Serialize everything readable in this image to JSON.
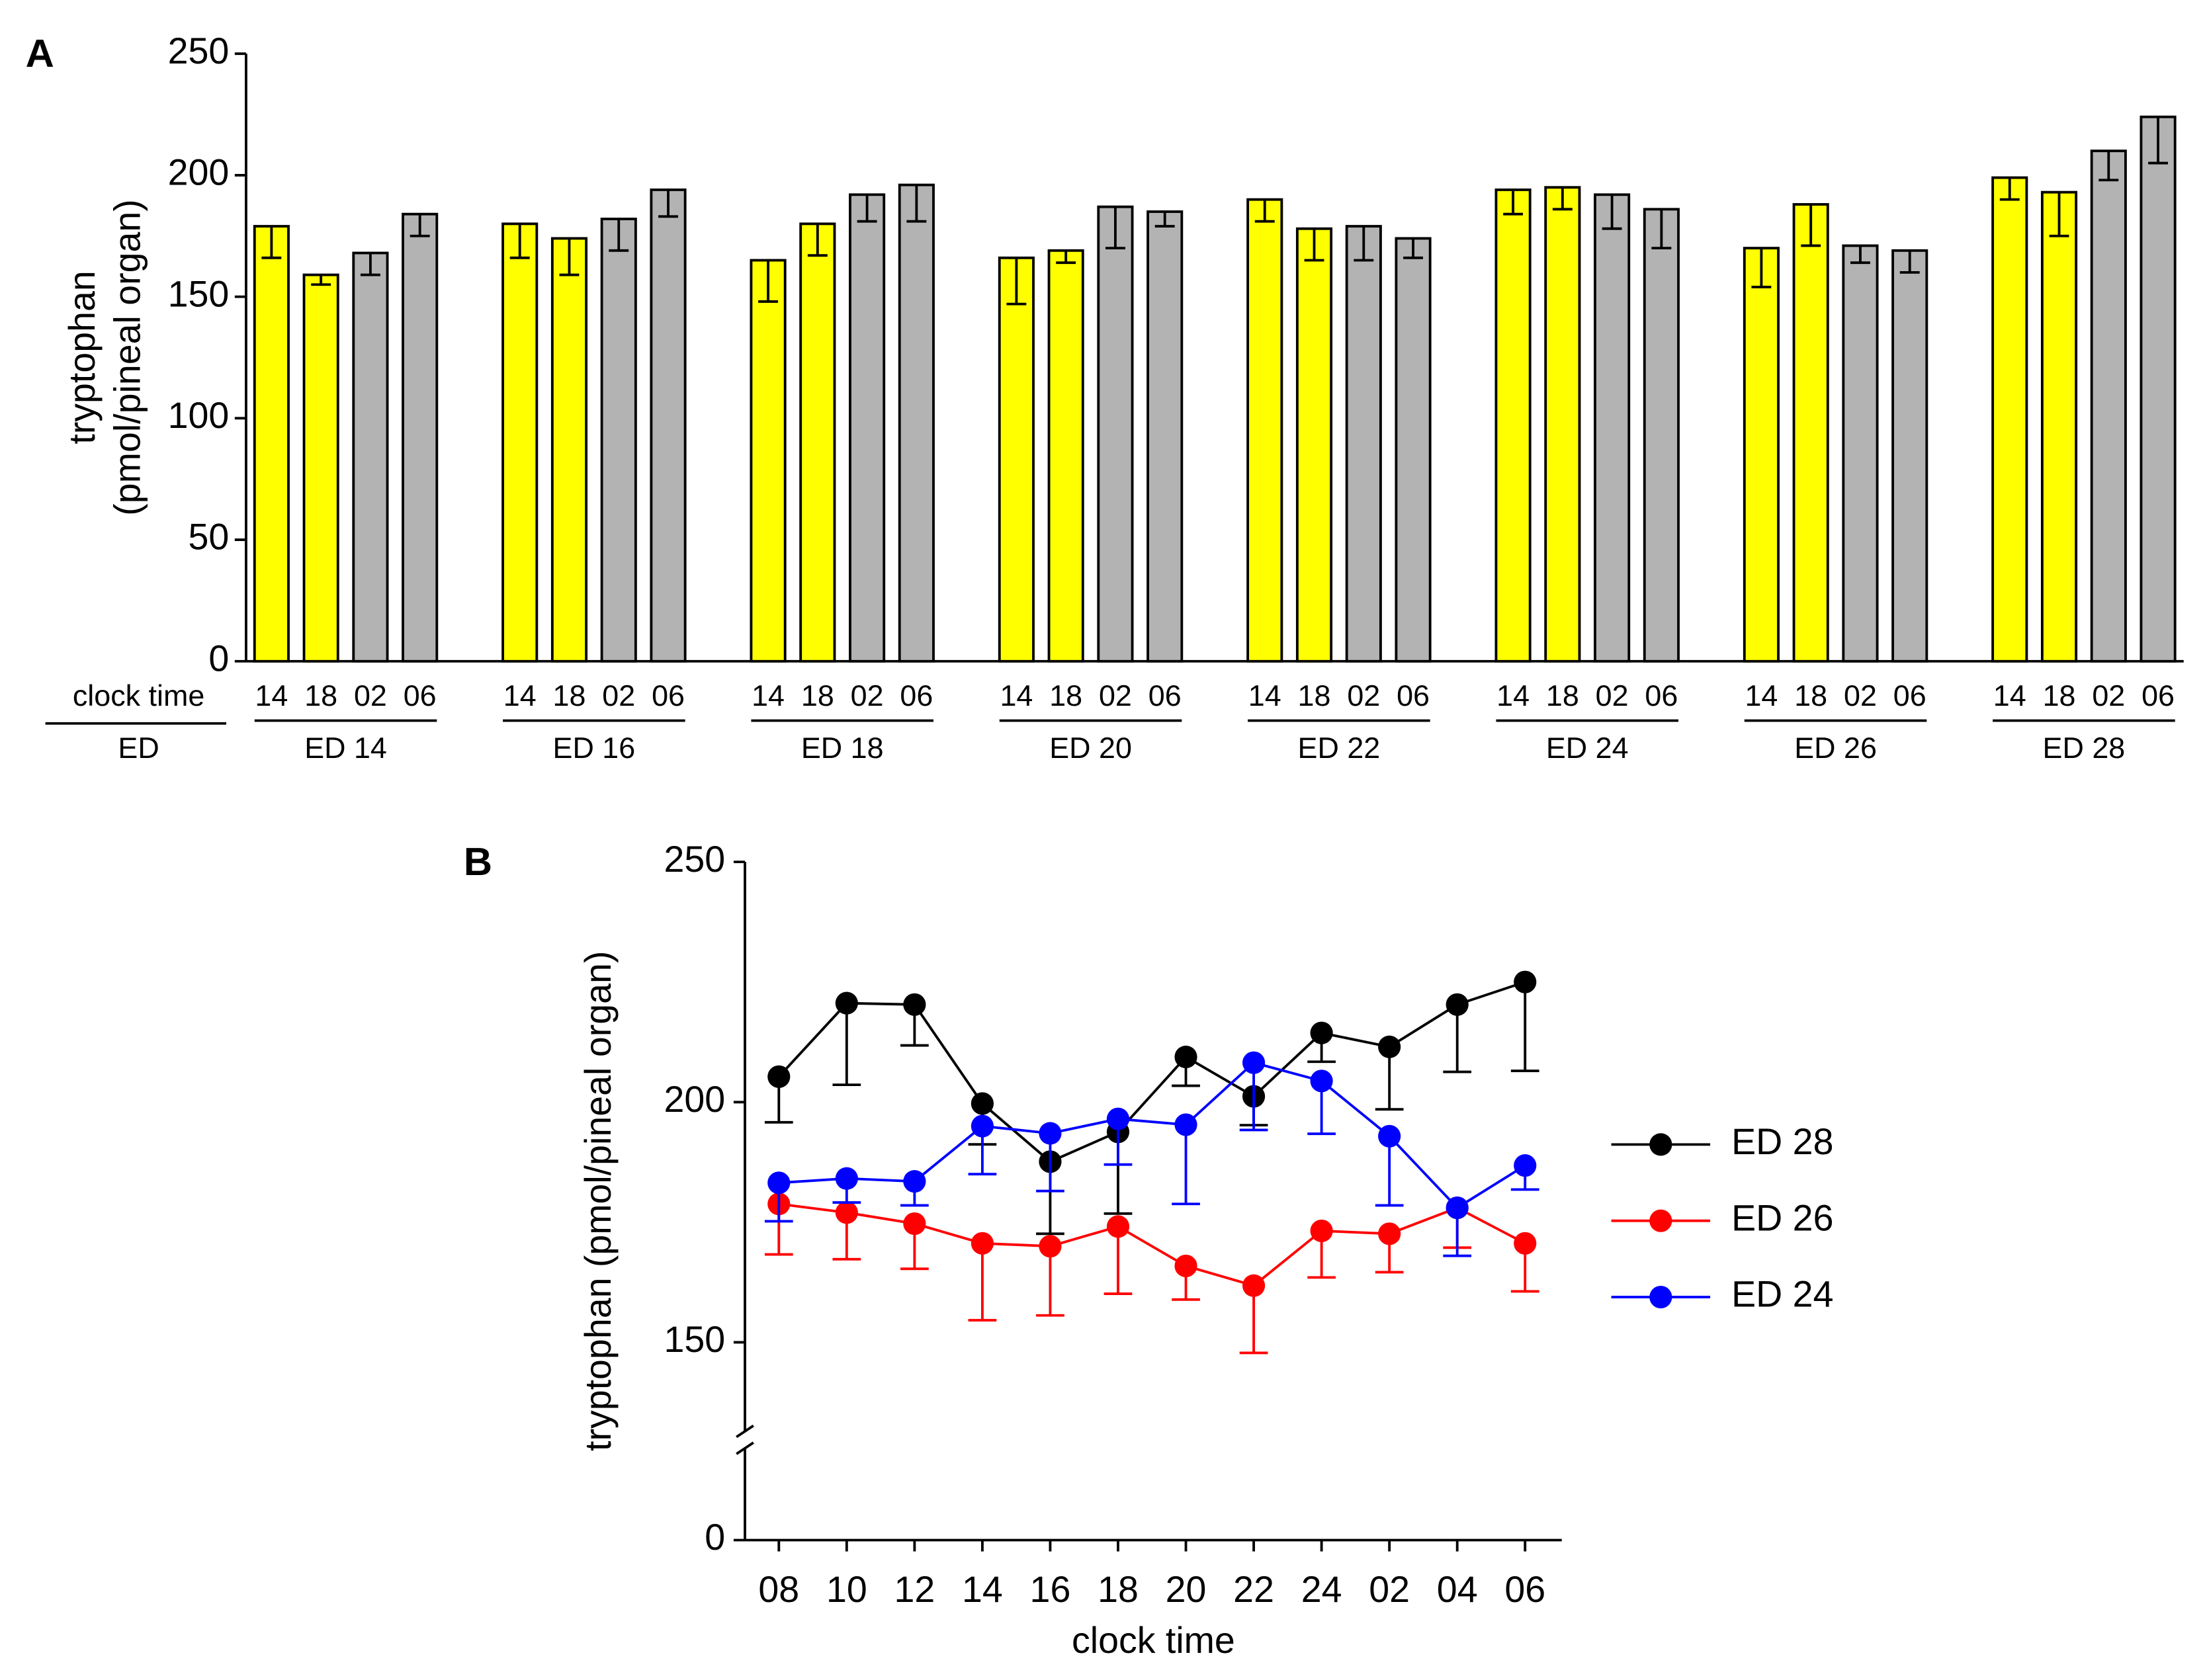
{
  "chart_data": [
    {
      "type": "bar",
      "label": "A",
      "ylabel": [
        "tryptophan",
        "(pmol/pineal organ)"
      ],
      "ylim": [
        0,
        250
      ],
      "yticks": [
        0,
        50,
        100,
        150,
        200,
        250
      ],
      "row_labels": [
        "clock time",
        "ED"
      ],
      "categories": [
        "ED 14",
        "ED 16",
        "ED 18",
        "ED 20",
        "ED 22",
        "ED 24",
        "ED 26",
        "ED 28"
      ],
      "series": [
        {
          "name": "14",
          "color": "#ffff00",
          "values": [
            179,
            180,
            165,
            166,
            190,
            194,
            170,
            199
          ],
          "errors": [
            13,
            14,
            17,
            19,
            9,
            10,
            16,
            9
          ]
        },
        {
          "name": "18",
          "color": "#ffff00",
          "values": [
            159,
            174,
            180,
            169,
            178,
            195,
            188,
            193
          ],
          "errors": [
            4,
            15,
            13,
            5,
            13,
            9,
            17,
            18
          ]
        },
        {
          "name": "02",
          "color": "#b3b3b3",
          "values": [
            168,
            182,
            192,
            187,
            179,
            192,
            171,
            210
          ],
          "errors": [
            9,
            13,
            11,
            17,
            14,
            14,
            7,
            12
          ]
        },
        {
          "name": "06",
          "color": "#b3b3b3",
          "values": [
            184,
            194,
            196,
            185,
            174,
            186,
            169,
            224
          ],
          "errors": [
            9,
            11,
            15,
            6,
            8,
            16,
            9,
            19
          ]
        }
      ]
    },
    {
      "type": "line",
      "label": "B",
      "ylabel": "tryptophan (pmol/pineal organ)",
      "xlabel": "clock time",
      "ylim": [
        0,
        250
      ],
      "ybreak": [
        0,
        140
      ],
      "yticks": [
        0,
        150,
        200,
        250
      ],
      "categories": [
        "08",
        "10",
        "12",
        "14",
        "16",
        "18",
        "20",
        "22",
        "24",
        "02",
        "04",
        "06"
      ],
      "series": [
        {
          "name": "ED 28",
          "color": "#000000",
          "values": [
            205.3,
            220.6,
            220.3,
            199.7,
            187.6,
            193.8,
            209.4,
            201.2,
            214.4,
            211.5,
            220.3,
            225
          ],
          "errors": [
            9.5,
            17,
            8.5,
            8.5,
            15,
            17,
            6,
            6,
            6,
            13,
            14,
            18.5
          ]
        },
        {
          "name": "ED 26",
          "color": "#ff0000",
          "values": [
            178.8,
            177,
            174.7,
            170.6,
            170,
            174.1,
            165.9,
            161.8,
            173.2,
            172.6,
            178,
            170.6
          ],
          "errors": [
            10.5,
            9.7,
            9.4,
            16,
            14.4,
            14,
            7,
            14,
            9.7,
            8,
            8.3,
            10
          ]
        },
        {
          "name": "ED 24",
          "color": "#0000ff",
          "values": [
            183.2,
            184.1,
            183.5,
            195,
            193.5,
            196.5,
            195.3,
            208.2,
            204.4,
            192.9,
            178,
            186.8
          ],
          "errors": [
            8,
            5,
            5,
            10,
            12,
            9.5,
            16.5,
            14,
            11,
            14.4,
            10,
            5
          ]
        }
      ]
    }
  ]
}
